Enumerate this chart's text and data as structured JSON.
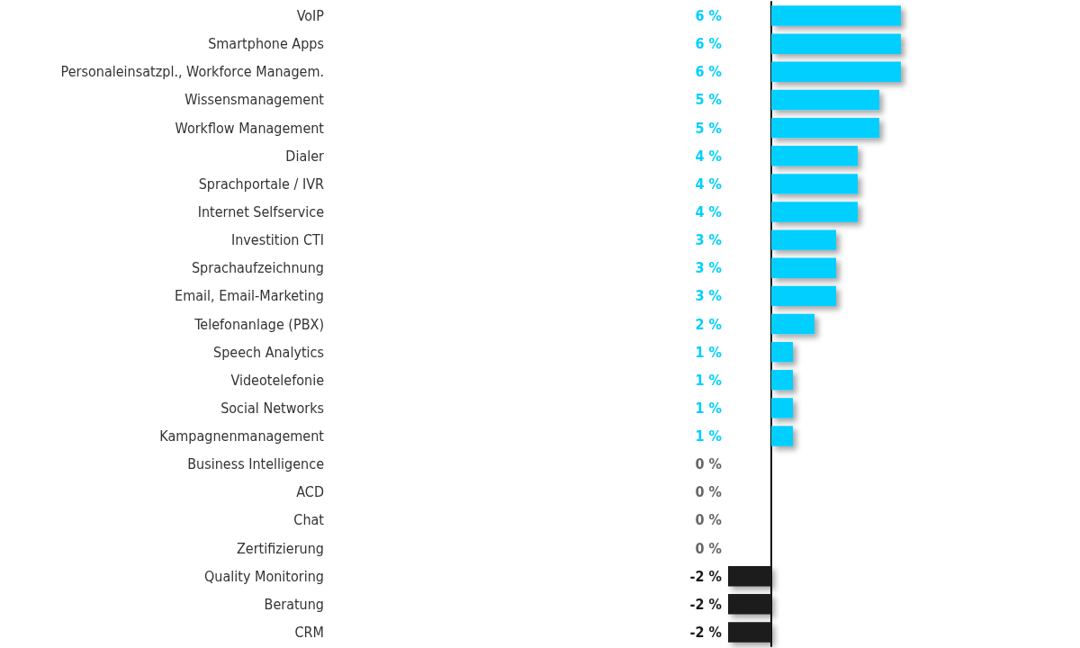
{
  "chart_data": {
    "type": "bar",
    "orientation": "horizontal",
    "categories": [
      "VoIP",
      "Smartphone Apps",
      "Personaleinsatzpl., Workforce Managem.",
      "Wissensmanagement",
      "Workflow Management",
      "Dialer",
      "Sprachportale / IVR",
      "Internet Selfservice",
      "Investition CTI",
      "Sprachaufzeichnung",
      "Email, Email-Marketing",
      "Telefonanlage (PBX)",
      "Speech Analytics",
      "Videotelefonie",
      "Social Networks",
      "Kampagnenmanagement",
      "Business Intelligence",
      "ACD",
      "Chat",
      "Zertifizierung",
      "Quality Monitoring",
      "Beratung",
      "CRM"
    ],
    "values": [
      6,
      6,
      6,
      5,
      5,
      4,
      4,
      4,
      3,
      3,
      3,
      2,
      1,
      1,
      1,
      1,
      0,
      0,
      0,
      0,
      -2,
      -2,
      -2
    ],
    "value_labels": [
      "6 %",
      "6 %",
      "6 %",
      "5 %",
      "5 %",
      "4 %",
      "4 %",
      "4 %",
      "3 %",
      "3 %",
      "3 %",
      "2 %",
      "1 %",
      "1 %",
      "1 %",
      "1 %",
      "0 %",
      "0 %",
      "0 %",
      "0 %",
      "-2 %",
      "-2 %",
      "-2 %"
    ],
    "colors": [
      "#00cfff",
      "#00cfff",
      "#00cfff",
      "#00cfff",
      "#00cfff",
      "#00cfff",
      "#00cfff",
      "#00cfff",
      "#00cfff",
      "#00cfff",
      "#00cfff",
      "#00cfff",
      "#00cfff",
      "#00cfff",
      "#00cfff",
      "#00cfff",
      "#666666",
      "#666666",
      "#666666",
      "#666666",
      "#1a1a1a",
      "#1a1a1a",
      "#1a1a1a"
    ],
    "grid": false
  }
}
